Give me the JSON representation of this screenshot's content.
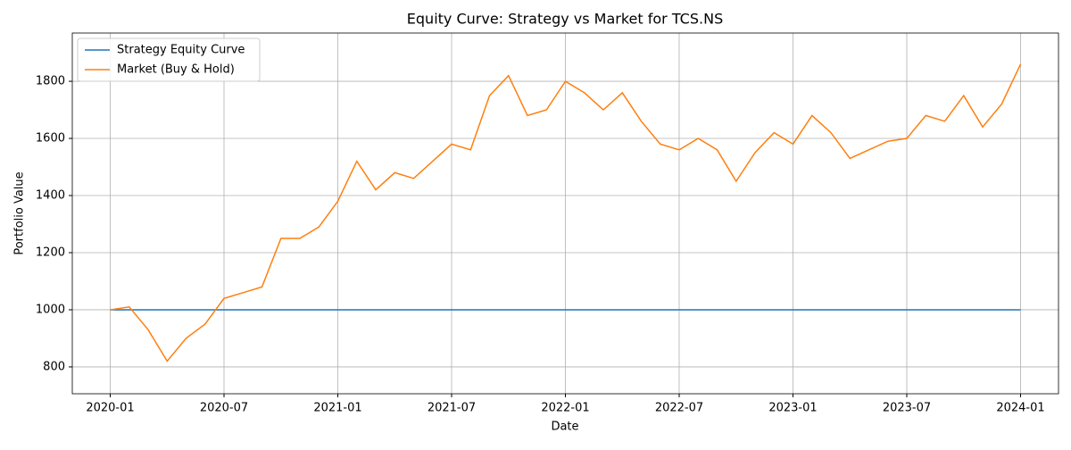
{
  "chart_data": {
    "type": "line",
    "title": "Equity Curve: Strategy vs Market for TCS.NS",
    "x_label": "Date",
    "y_label": "Portfolio Value",
    "x": [
      "2020-01",
      "2020-02",
      "2020-03",
      "2020-04",
      "2020-05",
      "2020-06",
      "2020-07",
      "2020-08",
      "2020-09",
      "2020-10",
      "2020-11",
      "2020-12",
      "2021-01",
      "2021-02",
      "2021-03",
      "2021-04",
      "2021-05",
      "2021-06",
      "2021-07",
      "2021-08",
      "2021-09",
      "2021-10",
      "2021-11",
      "2021-12",
      "2022-01",
      "2022-02",
      "2022-03",
      "2022-04",
      "2022-05",
      "2022-06",
      "2022-07",
      "2022-08",
      "2022-09",
      "2022-10",
      "2022-11",
      "2022-12",
      "2023-01",
      "2023-02",
      "2023-03",
      "2023-04",
      "2023-05",
      "2023-06",
      "2023-07",
      "2023-08",
      "2023-09",
      "2023-10",
      "2023-11",
      "2023-12",
      "2024-01"
    ],
    "series": [
      {
        "name": "Strategy Equity Curve",
        "color": "#1f77b4",
        "values": [
          1000,
          1000,
          1000,
          1000,
          1000,
          1000,
          1000,
          1000,
          1000,
          1000,
          1000,
          1000,
          1000,
          1000,
          1000,
          1000,
          1000,
          1000,
          1000,
          1000,
          1000,
          1000,
          1000,
          1000,
          1000,
          1000,
          1000,
          1000,
          1000,
          1000,
          1000,
          1000,
          1000,
          1000,
          1000,
          1000,
          1000,
          1000,
          1000,
          1000,
          1000,
          1000,
          1000,
          1000,
          1000,
          1000,
          1000,
          1000,
          1000
        ]
      },
      {
        "name": "Market (Buy & Hold)",
        "color": "#ff7f0e",
        "values": [
          1000,
          1010,
          930,
          820,
          900,
          950,
          1040,
          1060,
          1080,
          1250,
          1250,
          1290,
          1380,
          1520,
          1420,
          1480,
          1460,
          1520,
          1580,
          1560,
          1750,
          1820,
          1680,
          1700,
          1800,
          1760,
          1700,
          1760,
          1660,
          1580,
          1560,
          1600,
          1560,
          1450,
          1550,
          1620,
          1580,
          1680,
          1620,
          1530,
          1560,
          1590,
          1600,
          1680,
          1660,
          1750,
          1640,
          1720,
          1860
        ]
      }
    ],
    "xlim": [
      "2019-11",
      "2024-03"
    ],
    "xticks": [
      "2020-01",
      "2020-07",
      "2021-01",
      "2021-07",
      "2022-01",
      "2022-07",
      "2023-01",
      "2023-07",
      "2024-01"
    ],
    "ylim": [
      706,
      1969
    ],
    "yticks": [
      800,
      1000,
      1200,
      1400,
      1600,
      1800
    ],
    "grid": true,
    "legend": "upper-left"
  }
}
